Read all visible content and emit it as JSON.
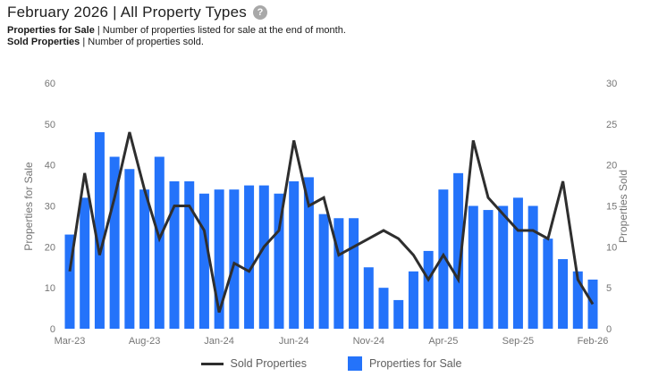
{
  "header": {
    "title": "February 2026 | All Property Types",
    "help_icon": "?",
    "legend_lines": [
      {
        "term": "Properties for Sale",
        "rest": " | Number of properties listed for sale at the end of month."
      },
      {
        "term": "Sold Properties",
        "rest": " | Number of properties sold."
      }
    ]
  },
  "chart_data": {
    "type": "bar",
    "subtype": "bar+line combo, dual y-axis",
    "categories": [
      "Mar-23",
      "Apr-23",
      "May-23",
      "Jun-23",
      "Jul-23",
      "Aug-23",
      "Sep-23",
      "Oct-23",
      "Nov-23",
      "Dec-23",
      "Jan-24",
      "Feb-24",
      "Mar-24",
      "Apr-24",
      "May-24",
      "Jun-24",
      "Jul-24",
      "Aug-24",
      "Sep-24",
      "Oct-24",
      "Nov-24",
      "Dec-24",
      "Jan-25",
      "Feb-25",
      "Mar-25",
      "Apr-25",
      "May-25",
      "Jun-25",
      "Jul-25",
      "Aug-25",
      "Sep-25",
      "Oct-25",
      "Nov-25",
      "Dec-25",
      "Jan-26",
      "Feb-26"
    ],
    "x_tick_labels": [
      "Mar-23",
      "Aug-23",
      "Jan-24",
      "Jun-24",
      "Nov-24",
      "Apr-25",
      "Sep-25",
      "Feb-26"
    ],
    "series": [
      {
        "name": "Properties for Sale",
        "type": "bar",
        "axis": "left",
        "values": [
          23,
          32,
          48,
          42,
          39,
          34,
          42,
          36,
          36,
          33,
          34,
          34,
          35,
          35,
          33,
          36,
          37,
          28,
          27,
          27,
          15,
          10,
          7,
          14,
          19,
          34,
          38,
          30,
          29,
          30,
          32,
          30,
          22,
          17,
          14,
          12
        ]
      },
      {
        "name": "Sold Properties",
        "type": "line",
        "axis": "right",
        "values": [
          7,
          19,
          9,
          16,
          24,
          17,
          11,
          15,
          15,
          12,
          2,
          8,
          7,
          10,
          12,
          23,
          15,
          16,
          9,
          10,
          11,
          12,
          11,
          9,
          6,
          9,
          6,
          23,
          16,
          14,
          12,
          12,
          11,
          18,
          6,
          3
        ]
      }
    ],
    "left_axis": {
      "label": "Properties for Sale",
      "min": 0,
      "max": 60,
      "tick_step": 10
    },
    "right_axis": {
      "label": "Properties Sold",
      "min": 0,
      "max": 30,
      "tick_step": 5
    },
    "grid": false,
    "legend_position": "bottom"
  },
  "legend": {
    "items": [
      {
        "label": "Sold Properties",
        "swatch": "line"
      },
      {
        "label": "Properties for Sale",
        "swatch": "square"
      }
    ]
  },
  "colors": {
    "bar": "#2473fa",
    "line": "#2e2e2e",
    "tick_text": "#757575",
    "legend_text": "#5f5f5f",
    "title_text": "#202020",
    "help_icon_bg": "#a8a8a8"
  }
}
